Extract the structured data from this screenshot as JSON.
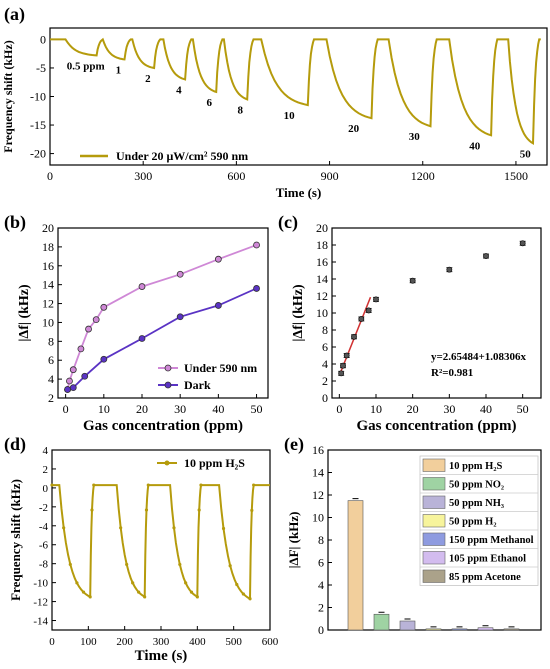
{
  "colors": {
    "gold": "#b59b0c",
    "pink": "#cf88d6",
    "purple": "#5a33c4",
    "red": "#d13232",
    "errorbar": "#333333"
  },
  "chart_data": [
    {
      "panel": "(a)",
      "type": "line",
      "xlabel": "Time (s)",
      "ylabel": "Frequency shift (kHz)",
      "xlim": [
        0,
        1600
      ],
      "ylim": [
        -22,
        2
      ],
      "xticks": [
        0,
        300,
        600,
        900,
        1200,
        1500
      ],
      "yticks": [
        0,
        -5,
        -10,
        -15,
        -20
      ],
      "legend": "Under 20 μW/cm² 590 nm",
      "legend_position": "bottom-left",
      "cycles": [
        {
          "label": "0.5 ppm",
          "start": 50,
          "end": 150,
          "min": -2.8
        },
        {
          "label": "1",
          "start": 170,
          "end": 240,
          "min": -3.5
        },
        {
          "label": "2",
          "start": 265,
          "end": 335,
          "min": -5.0
        },
        {
          "label": "4",
          "start": 365,
          "end": 435,
          "min": -7.0
        },
        {
          "label": "6",
          "start": 460,
          "end": 535,
          "min": -9.2
        },
        {
          "label": "8",
          "start": 560,
          "end": 635,
          "min": -10.5
        },
        {
          "label": "10",
          "start": 680,
          "end": 830,
          "min": -11.5
        },
        {
          "label": "20",
          "start": 890,
          "end": 1035,
          "min": -13.8
        },
        {
          "label": "30",
          "start": 1090,
          "end": 1225,
          "min": -15.2
        },
        {
          "label": "40",
          "start": 1285,
          "end": 1420,
          "min": -16.8
        },
        {
          "label": "50",
          "start": 1475,
          "end": 1555,
          "min": -18.2
        }
      ]
    },
    {
      "panel": "(b)",
      "type": "line",
      "xlabel": "Gas concentration (ppm)",
      "ylabel": "|Δf| (kHz)",
      "xlim": [
        -2,
        53
      ],
      "ylim": [
        2,
        20
      ],
      "xticks": [
        0,
        10,
        20,
        30,
        40,
        50
      ],
      "yticks": [
        2,
        4,
        6,
        8,
        10,
        12,
        14,
        16,
        18,
        20
      ],
      "x": [
        0.5,
        1,
        2,
        4,
        6,
        8,
        10,
        20,
        30,
        40,
        50
      ],
      "legend_position": "bottom-right",
      "series": [
        {
          "name": "Under 590 nm",
          "color": "pink",
          "values": [
            2.9,
            3.8,
            5.0,
            7.2,
            9.3,
            10.3,
            11.6,
            13.8,
            15.1,
            16.7,
            18.2
          ]
        },
        {
          "name": "Dark",
          "color": "purple",
          "x": [
            0.5,
            2,
            5,
            10,
            20,
            30,
            40,
            50
          ],
          "values": [
            2.9,
            3.1,
            4.3,
            6.1,
            8.3,
            10.6,
            11.8,
            13.6
          ]
        }
      ]
    },
    {
      "panel": "(c)",
      "type": "scatter",
      "xlabel": "Gas concentration (ppm)",
      "ylabel": "|Δf| (kHz)",
      "xlim": [
        -2,
        55
      ],
      "ylim": [
        0,
        20
      ],
      "xticks": [
        0,
        10,
        20,
        30,
        40,
        50
      ],
      "yticks": [
        0,
        2,
        4,
        6,
        8,
        10,
        12,
        14,
        16,
        18,
        20
      ],
      "x": [
        0.5,
        1,
        2,
        4,
        6,
        8,
        10,
        20,
        30,
        40,
        50
      ],
      "values": [
        2.9,
        3.8,
        5.0,
        7.2,
        9.3,
        10.3,
        11.6,
        13.8,
        15.1,
        16.7,
        18.2
      ],
      "fit": {
        "x": [
          0,
          8.5
        ],
        "intercept": 2.65484,
        "slope": 1.08306
      },
      "annotation_eq": "y=2.65484+1.08306x",
      "annotation_r2": "R²=0.981"
    },
    {
      "panel": "(d)",
      "type": "line",
      "xlabel": "Time (s)",
      "ylabel": "Frequency shift (kHz)",
      "xlim": [
        0,
        600
      ],
      "ylim": [
        -15,
        4
      ],
      "xticks": [
        0,
        100,
        200,
        300,
        400,
        500,
        600
      ],
      "yticks": [
        4,
        2,
        0,
        -2,
        -4,
        -6,
        -8,
        -10,
        -12,
        -14
      ],
      "legend": "10 ppm H₂S",
      "legend_position": "top-right",
      "cycles": [
        {
          "start": 20,
          "end": 105,
          "min": -11.5
        },
        {
          "start": 178,
          "end": 255,
          "min": -11.5
        },
        {
          "start": 325,
          "end": 400,
          "min": -11.5
        },
        {
          "start": 460,
          "end": 545,
          "min": -11.7
        }
      ]
    },
    {
      "panel": "(e)",
      "type": "bar",
      "ylabel": "|ΔF| (kHz)",
      "ylim": [
        0,
        16
      ],
      "yticks": [
        0,
        2,
        4,
        6,
        8,
        10,
        12,
        14,
        16
      ],
      "legend_position": "top-right",
      "categories": [
        "10 ppm H₂S",
        "50 ppm NO₂",
        "50 ppm NH₃",
        "50 ppm H₂",
        "150 ppm Methanol",
        "105 ppm Ethanol",
        "85 ppm Acetone"
      ],
      "values": [
        11.5,
        1.4,
        0.8,
        0.1,
        0.1,
        0.2,
        0.1
      ],
      "colors": [
        "#f2cf9c",
        "#9fd3a3",
        "#b9b3d8",
        "#f7f49c",
        "#8e9be0",
        "#d3bcef",
        "#aba28a"
      ]
    }
  ]
}
